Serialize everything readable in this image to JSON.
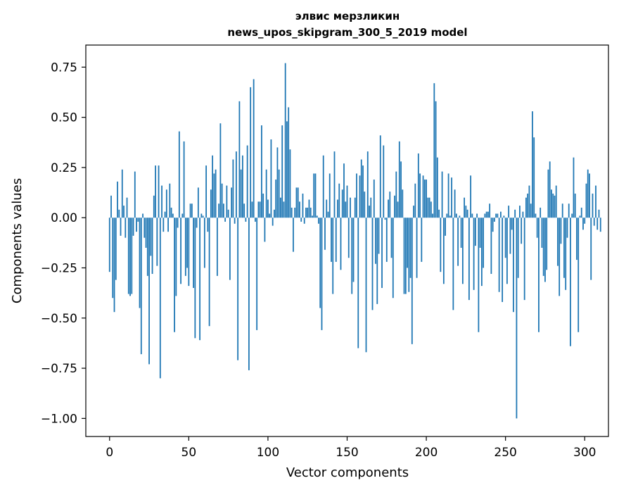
{
  "chart_data": {
    "type": "bar",
    "title_line1": "элвис мерзликин",
    "title_line2": "news_upos_skipgram_300_5_2019 model",
    "xlabel": "Vector components",
    "ylabel": "Components values",
    "xlim": [
      -15,
      315
    ],
    "ylim": [
      -1.09,
      0.86
    ],
    "xticks": [
      0,
      50,
      100,
      150,
      200,
      250,
      300
    ],
    "xtick_labels": [
      "0",
      "50",
      "100",
      "150",
      "200",
      "250",
      "300"
    ],
    "yticks": [
      -1.0,
      -0.75,
      -0.5,
      -0.25,
      0.0,
      0.25,
      0.5,
      0.75
    ],
    "ytick_labels": [
      "−1.00",
      "−0.75",
      "−0.50",
      "−0.25",
      "0.00",
      "0.25",
      "0.50",
      "0.75"
    ],
    "bar_color": "#1f77b4",
    "grid": false,
    "values": [
      -0.27,
      0.11,
      -0.4,
      -0.47,
      -0.31,
      0.18,
      0.04,
      -0.09,
      0.24,
      0.06,
      -0.1,
      0.1,
      -0.38,
      -0.39,
      -0.38,
      -0.09,
      0.23,
      -0.07,
      -0.02,
      -0.45,
      -0.68,
      0.02,
      -0.1,
      -0.15,
      -0.29,
      -0.73,
      -0.19,
      -0.28,
      0.11,
      0.26,
      -0.24,
      0.26,
      -0.8,
      0.16,
      -0.07,
      0.03,
      0.14,
      -0.07,
      0.17,
      0.05,
      0.02,
      -0.57,
      -0.39,
      -0.05,
      0.43,
      -0.33,
      0.02,
      0.38,
      -0.29,
      -0.25,
      -0.34,
      0.07,
      0.07,
      -0.35,
      -0.6,
      -0.05,
      0.15,
      -0.61,
      0.02,
      0.01,
      -0.25,
      0.26,
      -0.07,
      -0.54,
      0.14,
      0.31,
      0.22,
      0.24,
      -0.29,
      0.07,
      0.47,
      0.17,
      0.07,
      -0.02,
      0.16,
      0.04,
      -0.31,
      0.15,
      0.29,
      -0.03,
      0.33,
      -0.71,
      0.58,
      0.24,
      0.31,
      0.07,
      -0.02,
      0.36,
      -0.76,
      0.65,
      0.08,
      0.69,
      -0.02,
      -0.56,
      0.08,
      0.08,
      0.46,
      0.12,
      -0.12,
      0.24,
      0.09,
      0.02,
      0.39,
      -0.04,
      0.04,
      0.19,
      0.35,
      0.24,
      0.1,
      0.46,
      0.08,
      0.77,
      0.48,
      0.55,
      0.34,
      0.05,
      -0.17,
      0.05,
      0.15,
      0.15,
      0.08,
      -0.02,
      0.12,
      -0.03,
      0.05,
      0.05,
      0.09,
      0.05,
      0.01,
      0.22,
      0.22,
      0.01,
      -0.03,
      -0.45,
      -0.56,
      0.31,
      -0.16,
      0.09,
      0.03,
      0.22,
      -0.22,
      -0.38,
      0.33,
      -0.22,
      0.09,
      0.17,
      -0.26,
      0.14,
      0.27,
      0.08,
      0.16,
      -0.2,
      0.1,
      -0.38,
      -0.32,
      0.1,
      0.22,
      -0.65,
      0.21,
      0.29,
      0.26,
      0.13,
      -0.67,
      0.33,
      0.06,
      0.1,
      -0.46,
      0.19,
      -0.23,
      -0.43,
      -0.18,
      0.41,
      -0.35,
      0.36,
      -0.01,
      -0.22,
      0.09,
      0.13,
      -0.2,
      -0.4,
      0.11,
      0.23,
      0.08,
      0.38,
      0.28,
      0.14,
      -0.38,
      -0.38,
      -0.25,
      -0.37,
      -0.3,
      -0.63,
      0.06,
      0.17,
      -0.3,
      0.32,
      0.22,
      -0.22,
      0.21,
      0.19,
      0.19,
      0.1,
      0.1,
      0.08,
      0.02,
      0.67,
      0.58,
      0.3,
      0.04,
      -0.27,
      0.23,
      -0.33,
      -0.09,
      0.02,
      0.22,
      0.01,
      0.2,
      -0.46,
      0.14,
      0.02,
      -0.24,
      0.01,
      -0.15,
      -0.33,
      0.1,
      0.06,
      0.04,
      -0.41,
      0.21,
      0.02,
      -0.36,
      -0.14,
      0.02,
      -0.57,
      -0.15,
      -0.34,
      -0.25,
      0.02,
      0.03,
      0.03,
      0.07,
      -0.28,
      -0.07,
      -0.02,
      0.02,
      0.02,
      -0.37,
      0.03,
      -0.42,
      0.01,
      -0.2,
      -0.33,
      0.06,
      -0.18,
      -0.06,
      -0.47,
      0.04,
      -1.0,
      -0.3,
      0.06,
      -0.13,
      0.03,
      -0.41,
      0.1,
      0.12,
      0.16,
      0.07,
      0.53,
      0.4,
      0.02,
      -0.1,
      -0.57,
      0.05,
      -0.15,
      -0.29,
      -0.32,
      -0.26,
      0.24,
      0.28,
      0.14,
      0.12,
      0.11,
      0.16,
      -0.24,
      -0.39,
      -0.13,
      0.07,
      -0.3,
      -0.36,
      -0.1,
      0.07,
      -0.64,
      0.02,
      0.3,
      0.12,
      -0.21,
      -0.57,
      0.01,
      0.05,
      -0.06,
      -0.03,
      0.17,
      0.24,
      0.22,
      -0.31,
      0.12,
      -0.04,
      0.16,
      -0.06,
      0.04,
      -0.07
    ]
  }
}
